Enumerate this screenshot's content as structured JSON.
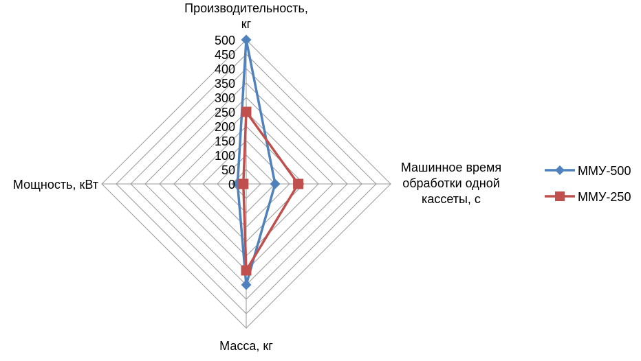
{
  "chart_data": {
    "type": "radar",
    "axes": [
      {
        "label_lines": [
          "Производительность,",
          "кг"
        ]
      },
      {
        "label_lines": [
          "Машинное время",
          "обработки одной",
          "кассеты, с"
        ]
      },
      {
        "label_lines": [
          "Масса, кг"
        ]
      },
      {
        "label_lines": [
          "Мощность, кВт"
        ]
      }
    ],
    "r_range": [
      0,
      500
    ],
    "r_ticks": [
      0,
      50,
      100,
      150,
      200,
      250,
      300,
      350,
      400,
      450,
      500
    ],
    "grid": true,
    "legend_position": "right",
    "series": [
      {
        "name": "ММУ-500",
        "color": "#4F81BD",
        "marker": "diamond",
        "values": [
          500,
          100,
          350,
          30
        ]
      },
      {
        "name": "ММУ-250",
        "color": "#C0504D",
        "marker": "square",
        "values": [
          250,
          180,
          300,
          10
        ]
      }
    ]
  }
}
